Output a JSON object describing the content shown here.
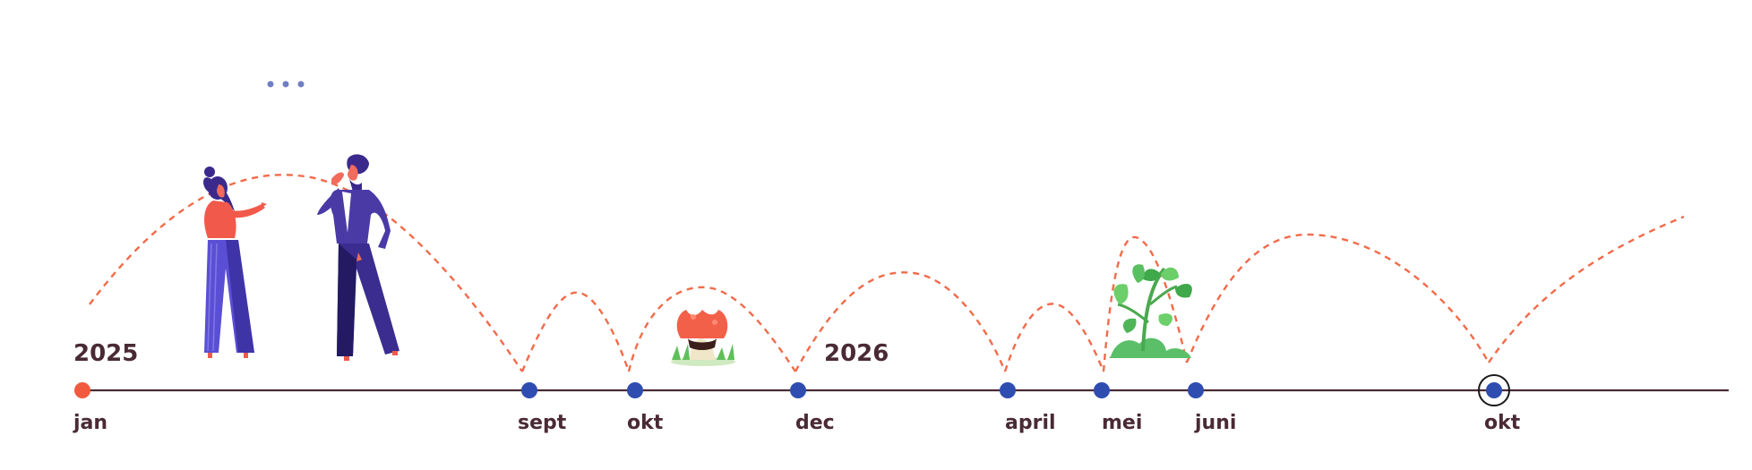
{
  "timeline": {
    "colors": {
      "axis": "#4a2a36",
      "start_dot": "#f15a3e",
      "milestone_dot": "#2f4db0",
      "arc": "#f26b4b",
      "text": "#4a2a36"
    },
    "years": [
      {
        "label": "2025"
      },
      {
        "label": "2026"
      }
    ],
    "milestones": [
      {
        "label": "jan",
        "kind": "start"
      },
      {
        "label": "sept",
        "kind": "milestone"
      },
      {
        "label": "okt",
        "kind": "milestone"
      },
      {
        "label": "dec",
        "kind": "milestone"
      },
      {
        "label": "april",
        "kind": "milestone"
      },
      {
        "label": "mei",
        "kind": "milestone"
      },
      {
        "label": "juni",
        "kind": "milestone"
      },
      {
        "label": "okt",
        "kind": "current"
      }
    ]
  },
  "illustrations": [
    {
      "name": "woman-presenting-icon"
    },
    {
      "name": "man-thinking-icon"
    },
    {
      "name": "speech-dots-icon"
    },
    {
      "name": "mushroom-icon"
    },
    {
      "name": "plant-sprout-icon"
    }
  ]
}
